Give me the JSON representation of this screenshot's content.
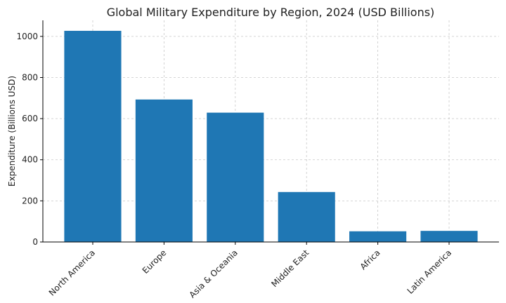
{
  "chart_data": {
    "type": "bar",
    "title": "Global Military Expenditure by Region, 2024 (USD Billions)",
    "xlabel": "",
    "ylabel": "Expenditure (Billions USD)",
    "categories": [
      "North America",
      "Europe",
      "Asia & Oceania",
      "Middle East",
      "Africa",
      "Latin America"
    ],
    "values": [
      1027,
      693,
      629,
      243,
      52,
      54
    ],
    "ylim": [
      0,
      1078
    ],
    "yticks": [
      0,
      200,
      400,
      600,
      800,
      1000
    ],
    "bar_color": "#1f77b4",
    "grid": true,
    "legend": "none"
  }
}
